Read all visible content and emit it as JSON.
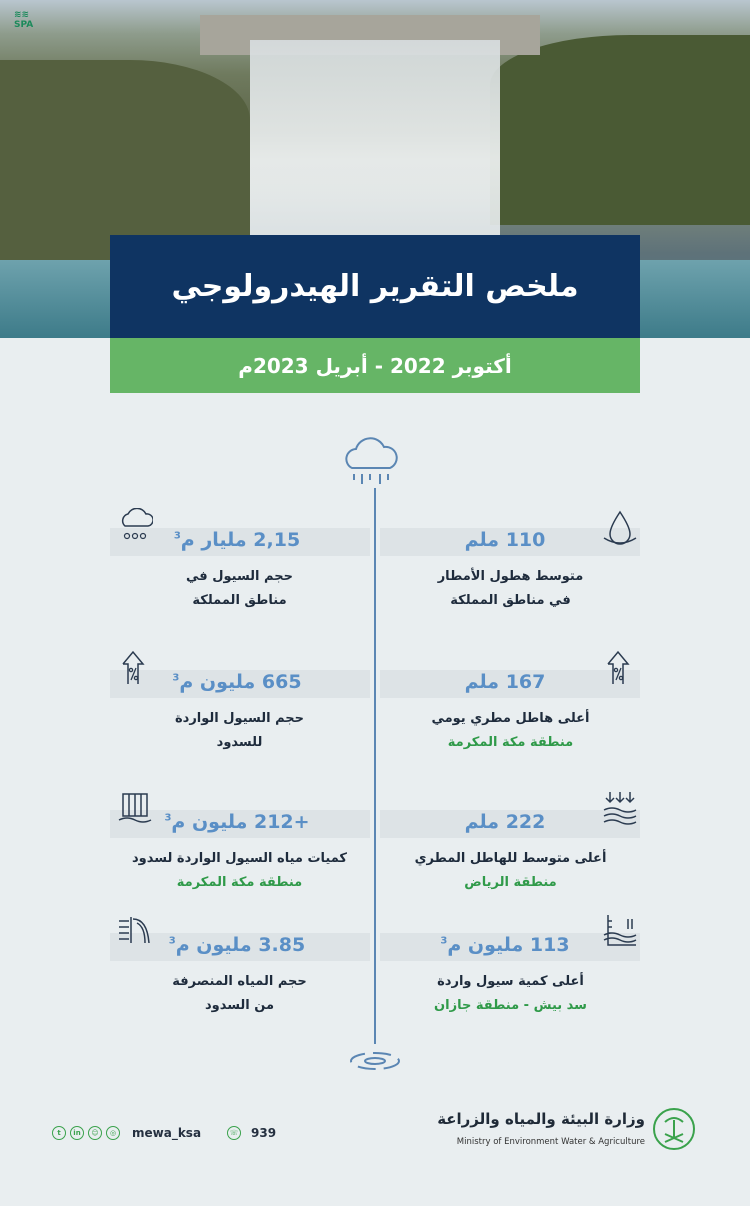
{
  "header": {
    "agency_logo": "SPA",
    "title": "ملخص التقرير الهيدرولوجي",
    "period": "أكتوبر 2022  - أبريل 2023م"
  },
  "stats": [
    {
      "icon": "water-drop-icon",
      "value": "110 ملم",
      "sup": "",
      "label_lines": [
        "متوسط هطول الأمطار",
        "في مناطق المملكة"
      ],
      "region": ""
    },
    {
      "icon": "rain-cloud-icon",
      "value": "2,15 مليار م",
      "sup": "3",
      "label_lines": [
        "حجم السيول في",
        "مناطق المملكة"
      ],
      "region": ""
    },
    {
      "icon": "percent-arrow-up-icon",
      "value": "167 ملم",
      "sup": "",
      "label_lines": [
        "أعلى هاطل مطري يومي"
      ],
      "region": "منطقة مكة المكرمة"
    },
    {
      "icon": "percent-arrow-up-icon",
      "value": "665 مليون م",
      "sup": "3",
      "label_lines": [
        "حجم السيول الواردة",
        "للسدود"
      ],
      "region": ""
    },
    {
      "icon": "rain-waves-icon",
      "value": "222 ملم",
      "sup": "",
      "label_lines": [
        "أعلى متوسط للهاطل المطري"
      ],
      "region": "منطقة الرياض"
    },
    {
      "icon": "dam-gates-icon",
      "value": "+212 مليون م",
      "sup": "3",
      "label_lines": [
        "كميات مياه السيول الواردة لسدود"
      ],
      "region": "منطقة مكة المكرمة"
    },
    {
      "icon": "water-level-gauge-icon",
      "value": "113 مليون م",
      "sup": "3",
      "label_lines": [
        "أعلى كمية سيول واردة"
      ],
      "region": "سد بيش - منطقة جازان"
    },
    {
      "icon": "dam-spillway-icon",
      "value": "3.85 مليون م",
      "sup": "3",
      "label_lines": [
        "حجم المياه المنصرفة",
        "من السدود"
      ],
      "region": ""
    }
  ],
  "footer": {
    "social_icons": [
      "twitter-icon",
      "linkedin-icon",
      "snapchat-icon",
      "instagram-icon"
    ],
    "handle": "mewa_ksa",
    "phone": "939",
    "ministry_ar": "وزارة البيئة والمياه والزراعة",
    "ministry_en": "Ministry of Environment Water & Agriculture"
  },
  "colors": {
    "navy": "#0f3462",
    "green": "#66b566",
    "value_blue": "#5a8fc6",
    "region_green": "#2f9a49"
  }
}
